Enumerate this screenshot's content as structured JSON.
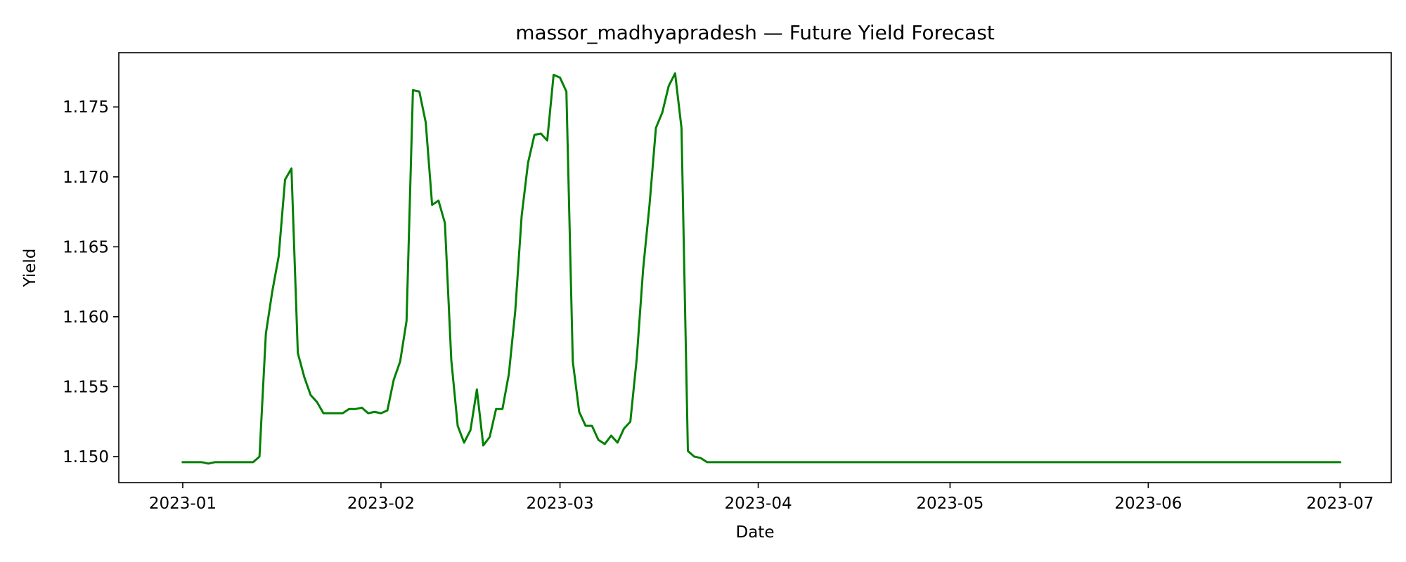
{
  "chart_data": {
    "type": "line",
    "title": "massor_madhyapradesh — Future Yield Forecast",
    "xlabel": "Date",
    "ylabel": "Yield",
    "x_start": "2023-01-01",
    "xlim": [
      "2022-12-22",
      "2023-07-09"
    ],
    "ylim": [
      1.14814,
      1.17888
    ],
    "grid": false,
    "color": "#008000",
    "x_ticks": [
      {
        "label": "2023-01",
        "date": "2023-01-01"
      },
      {
        "label": "2023-02",
        "date": "2023-02-01"
      },
      {
        "label": "2023-03",
        "date": "2023-03-01"
      },
      {
        "label": "2023-04",
        "date": "2023-04-01"
      },
      {
        "label": "2023-05",
        "date": "2023-05-01"
      },
      {
        "label": "2023-06",
        "date": "2023-06-01"
      },
      {
        "label": "2023-07",
        "date": "2023-07-01"
      }
    ],
    "y_ticks": [
      "1.150",
      "1.155",
      "1.160",
      "1.165",
      "1.170",
      "1.175"
    ],
    "values": [
      1.1496,
      1.1496,
      1.1496,
      1.1496,
      1.1495,
      1.1496,
      1.1496,
      1.1496,
      1.1496,
      1.1496,
      1.1496,
      1.1496,
      1.15,
      1.1588,
      1.1618,
      1.1643,
      1.1698,
      1.1706,
      1.1574,
      1.1557,
      1.1544,
      1.1539,
      1.1531,
      1.1531,
      1.1531,
      1.1531,
      1.1534,
      1.1534,
      1.1535,
      1.1531,
      1.1532,
      1.1531,
      1.1533,
      1.1555,
      1.1568,
      1.1597,
      1.1762,
      1.1761,
      1.1739,
      1.168,
      1.1683,
      1.1667,
      1.1569,
      1.1522,
      1.151,
      1.1519,
      1.1548,
      1.1508,
      1.1514,
      1.1534,
      1.1534,
      1.1559,
      1.1604,
      1.1672,
      1.171,
      1.173,
      1.1731,
      1.1726,
      1.1773,
      1.1771,
      1.1761,
      1.1568,
      1.1532,
      1.1522,
      1.1522,
      1.1512,
      1.1509,
      1.1515,
      1.151,
      1.152,
      1.1525,
      1.157,
      1.1634,
      1.168,
      1.1735,
      1.1746,
      1.1765,
      1.1774,
      1.1735,
      1.1504,
      1.15,
      1.1499,
      1.1496,
      1.1496,
      1.1496,
      1.1496,
      1.1496,
      1.1496,
      1.1496,
      1.1496,
      1.1496,
      1.1496,
      1.1496,
      1.1496,
      1.1496,
      1.1496,
      1.1496,
      1.1496,
      1.1496,
      1.1496,
      1.1496,
      1.1496,
      1.1496,
      1.1496,
      1.1496,
      1.1496,
      1.1496,
      1.1496,
      1.1496,
      1.1496,
      1.1496,
      1.1496,
      1.1496,
      1.1496,
      1.1496,
      1.1496,
      1.1496,
      1.1496,
      1.1496,
      1.1496,
      1.1496,
      1.1496,
      1.1496,
      1.1496,
      1.1496,
      1.1496,
      1.1496,
      1.1496,
      1.1496,
      1.1496,
      1.1496,
      1.1496,
      1.1496,
      1.1496,
      1.1496,
      1.1496,
      1.1496,
      1.1496,
      1.1496,
      1.1496,
      1.1496,
      1.1496,
      1.1496,
      1.1496,
      1.1496,
      1.1496,
      1.1496,
      1.1496,
      1.1496,
      1.1496,
      1.1496,
      1.1496,
      1.1496,
      1.1496,
      1.1496,
      1.1496,
      1.1496,
      1.1496,
      1.1496,
      1.1496,
      1.1496,
      1.1496,
      1.1496,
      1.1496,
      1.1496,
      1.1496,
      1.1496,
      1.1496,
      1.1496,
      1.1496,
      1.1496,
      1.1496,
      1.1496,
      1.1496,
      1.1496,
      1.1496,
      1.1496,
      1.1496,
      1.1496,
      1.1496,
      1.1496,
      1.1496
    ]
  }
}
